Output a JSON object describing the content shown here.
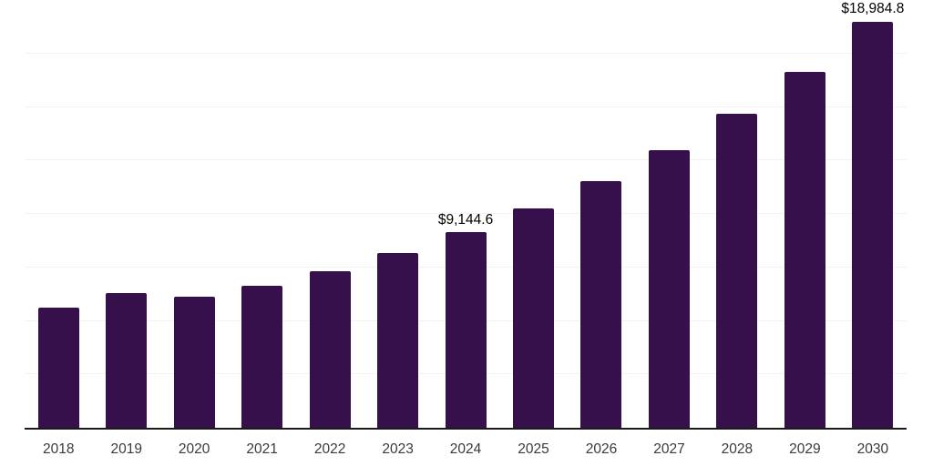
{
  "chart_data": {
    "type": "bar",
    "title": "",
    "xlabel": "",
    "ylabel": "",
    "categories": [
      "2018",
      "2019",
      "2020",
      "2021",
      "2022",
      "2023",
      "2024",
      "2025",
      "2026",
      "2027",
      "2028",
      "2029",
      "2030"
    ],
    "values": [
      5630,
      6280,
      6110,
      6640,
      7300,
      8190,
      9144.6,
      10270,
      11540,
      12990,
      14690,
      16640,
      18984.8
    ],
    "data_labels": [
      "",
      "",
      "",
      "",
      "",
      "",
      "$9,144.6",
      "",
      "",
      "",
      "",
      "",
      "$18,984.8"
    ],
    "ylim": [
      0,
      20000
    ],
    "gridline_interval": 2500,
    "grid": true,
    "legend": false,
    "colors": {
      "bar": "#36104B",
      "axis_line": "#1a1a1a",
      "gridline": "#f2f2f2",
      "value_label": "#000000",
      "tick_label": "#3a3a3a"
    }
  }
}
